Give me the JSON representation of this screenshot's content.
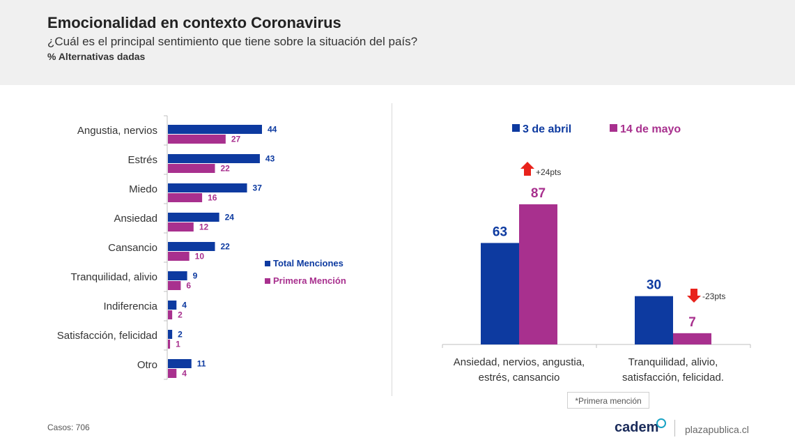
{
  "header": {
    "title": "Emocionalidad en contexto Coronavirus",
    "subtitle": "¿Cuál es el principal sentimiento que tiene sobre la situación del país?",
    "note": "% Alternativas dadas"
  },
  "colors": {
    "blue": "#0d3aa0",
    "magenta": "#a8308e",
    "axis": "#bfbfbf",
    "up": "#e8221b",
    "down": "#e8221b"
  },
  "chart_data": [
    {
      "type": "bar",
      "orientation": "horizontal",
      "categories": [
        "Angustia, nervios",
        "Estrés",
        "Miedo",
        "Ansiedad",
        "Cansancio",
        "Tranquilidad, alivio",
        "Indiferencia",
        "Satisfacción, felicidad",
        "Otro"
      ],
      "series": [
        {
          "name": "Total Menciones",
          "values": [
            44,
            43,
            37,
            24,
            22,
            9,
            4,
            2,
            11
          ]
        },
        {
          "name": "Primera Mención",
          "values": [
            27,
            22,
            16,
            12,
            10,
            6,
            2,
            1,
            4
          ]
        }
      ],
      "legend_position": "right",
      "xlim": [
        0,
        100
      ]
    },
    {
      "type": "bar",
      "categories": [
        "Ansiedad, nervios, angustia, estrés, cansancio",
        "Tranquilidad, alivio, satisfacción, felicidad."
      ],
      "category_lines": [
        [
          "Ansiedad, nervios, angustia,",
          "estrés, cansancio"
        ],
        [
          "Tranquilidad, alivio,",
          "satisfacción, felicidad."
        ]
      ],
      "series": [
        {
          "name": "3 de abril",
          "values": [
            63,
            30
          ]
        },
        {
          "name": "14 de mayo",
          "values": [
            87,
            7
          ]
        }
      ],
      "annotations": [
        {
          "text": "+24pts",
          "direction": "up",
          "category": 0
        },
        {
          "text": "-23pts",
          "direction": "down",
          "category": 1
        }
      ],
      "legend_position": "top",
      "ylim": [
        0,
        100
      ]
    }
  ],
  "footnote": "*Primera mención",
  "footer": {
    "cases": "Casos: 706",
    "brand": "cadem",
    "site": "plazapublica.cl"
  }
}
